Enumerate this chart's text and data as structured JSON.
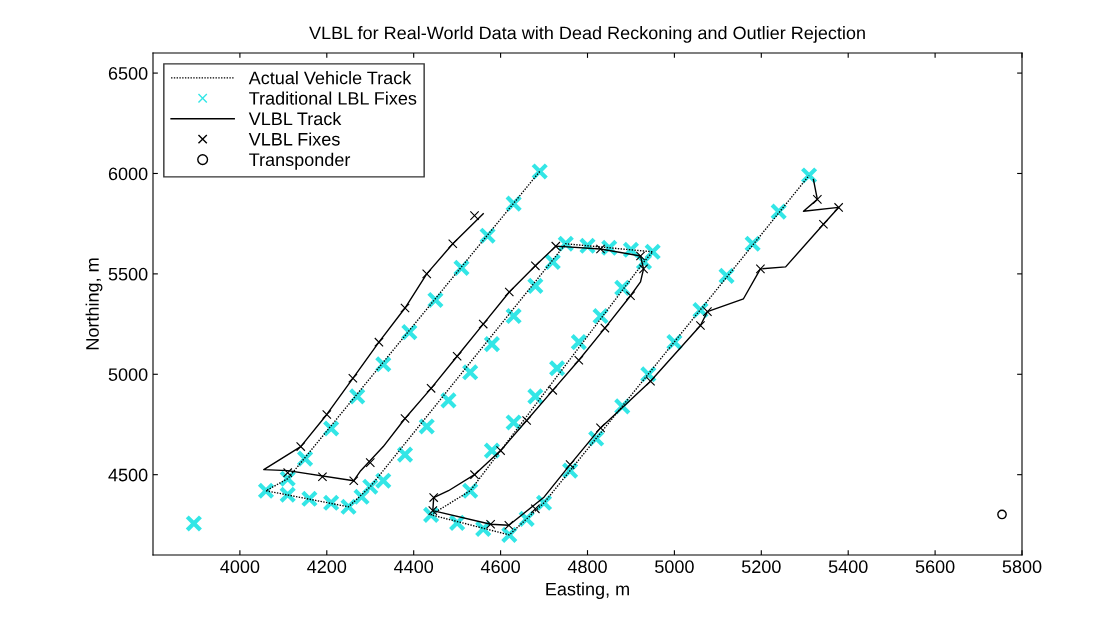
{
  "chart_data": {
    "type": "scatter",
    "title": "VLBL for Real-World Data with Dead Reckoning and Outlier Rejection",
    "xlabel": "Easting, m",
    "ylabel": "Northing, m",
    "xlim": [
      3800,
      5800
    ],
    "ylim": [
      4100,
      6600
    ],
    "xticks": [
      4000,
      4200,
      4400,
      4600,
      4800,
      5000,
      5200,
      5400,
      5600,
      5800
    ],
    "yticks": [
      4500,
      5000,
      5500,
      6000,
      6500
    ],
    "grid": false,
    "legend": "top left",
    "series": [
      {
        "name": "Actual Vehicle Track",
        "type": "line",
        "line_style": "dotted",
        "marker": "none",
        "color": "#000000",
        "x": [
          4690,
          4110,
          4060,
          4250,
          4300,
          4750,
          4950,
          4930,
          4530,
          4440,
          4620,
          4700,
          5310
        ],
        "values": [
          6010,
          4480,
          4420,
          4340,
          4440,
          5650,
          5610,
          5560,
          4420,
          4300,
          4200,
          4360,
          5990
        ]
      },
      {
        "name": "Traditional LBL Fixes",
        "marker": "cross",
        "color": "#33e6e6",
        "x": [
          4690,
          4630,
          4570,
          4510,
          4450,
          4390,
          4330,
          4270,
          4210,
          4150,
          4110,
          4060,
          4110,
          4160,
          4210,
          4250,
          4280,
          4300,
          4330,
          4380,
          4430,
          4480,
          4530,
          4580,
          4630,
          4680,
          4720,
          4750,
          4800,
          4850,
          4900,
          4950,
          4930,
          4880,
          4830,
          4780,
          4730,
          4680,
          4630,
          4580,
          4530,
          4440,
          4500,
          4560,
          4620,
          4660,
          4700,
          4760,
          4820,
          4880,
          4940,
          5000,
          5060,
          5120,
          5180,
          5240,
          5310,
          3894
        ],
        "values": [
          6010,
          5850,
          5690,
          5530,
          5370,
          5210,
          5050,
          4890,
          4730,
          4580,
          4480,
          4420,
          4400,
          4380,
          4360,
          4340,
          4390,
          4440,
          4470,
          4600,
          4740,
          4870,
          5010,
          5150,
          5290,
          5440,
          5560,
          5650,
          5640,
          5630,
          5620,
          5610,
          5560,
          5430,
          5290,
          5160,
          5030,
          4890,
          4760,
          4620,
          4420,
          4300,
          4260,
          4230,
          4200,
          4280,
          4360,
          4520,
          4680,
          4840,
          5000,
          5160,
          5320,
          5490,
          5650,
          5810,
          5990,
          4257
        ]
      },
      {
        "name": "VLBL Track",
        "type": "line",
        "line_style": "solid",
        "marker": "none",
        "color": "#000000",
        "x": [
          4560,
          4490,
          4430,
          4380,
          4320,
          4260,
          4200,
          4140,
          4055,
          4110,
          4262,
          4278,
          4330,
          4380,
          4440,
          4500,
          4560,
          4620,
          4680,
          4727,
          4830,
          4922,
          4929,
          4922,
          4899,
          4840,
          4780,
          4720,
          4660,
          4600,
          4540,
          4480,
          4446,
          4444,
          4577,
          4619,
          4699,
          4760,
          4830,
          4945,
          5060,
          5076,
          5159,
          5198,
          5256,
          5343,
          5378,
          5297,
          5329,
          5320
        ],
        "values": [
          5800,
          5650,
          5500,
          5330,
          5160,
          4980,
          4800,
          4640,
          4525,
          4520,
          4470,
          4520,
          4640,
          4780,
          4930,
          5090,
          5250,
          5410,
          5540,
          5638,
          5624,
          5589,
          5525,
          5460,
          5391,
          5230,
          5070,
          4920,
          4770,
          4620,
          4500,
          4420,
          4386,
          4321,
          4253,
          4248,
          4386,
          4550,
          4733,
          4965,
          5243,
          5312,
          5376,
          5525,
          5535,
          5747,
          5831,
          5812,
          5871,
          5970
        ]
      },
      {
        "name": "VLBL Fixes",
        "marker": "cross",
        "color": "#000000",
        "x": [
          4540,
          4490,
          4430,
          4380,
          4320,
          4260,
          4200,
          4140,
          4110,
          4190,
          4262,
          4300,
          4380,
          4440,
          4500,
          4560,
          4620,
          4680,
          4727,
          4830,
          4922,
          4929,
          4899,
          4840,
          4780,
          4720,
          4660,
          4600,
          4540,
          4446,
          4444,
          4577,
          4619,
          4680,
          4760,
          4830,
          4945,
          5060,
          5076,
          5198,
          5343,
          5378,
          5329
        ],
        "values": [
          5790,
          5650,
          5500,
          5330,
          5160,
          4980,
          4800,
          4640,
          4510,
          4490,
          4470,
          4560,
          4780,
          4930,
          5090,
          5250,
          5410,
          5540,
          5638,
          5624,
          5589,
          5525,
          5391,
          5230,
          5070,
          4920,
          4770,
          4620,
          4500,
          4386,
          4321,
          4253,
          4248,
          4330,
          4550,
          4733,
          4965,
          5243,
          5312,
          5525,
          5747,
          5831,
          5871
        ]
      },
      {
        "name": "Transponder",
        "marker": "circle",
        "color": "#000000",
        "x": [
          5754
        ],
        "values": [
          4302
        ]
      }
    ]
  }
}
